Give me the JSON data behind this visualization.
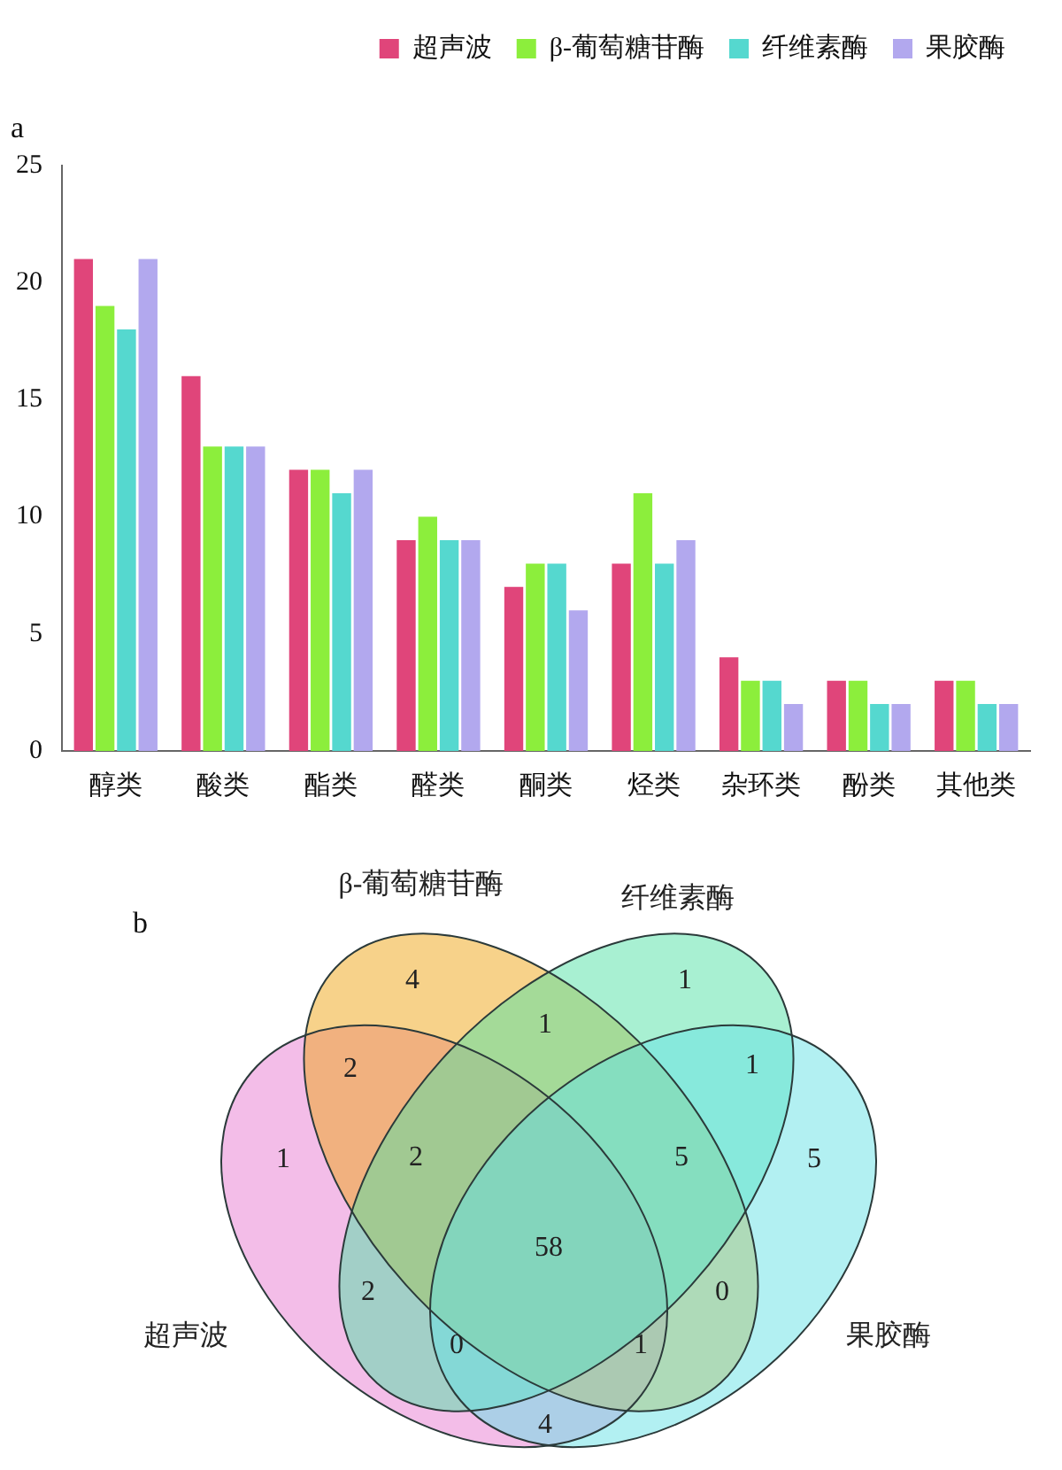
{
  "chart_data": [
    {
      "type": "bar",
      "title": "a",
      "categories": [
        "醇类",
        "酸类",
        "酯类",
        "醛类",
        "酮类",
        "烃类",
        "杂环类",
        "酚类",
        "其他类"
      ],
      "series": [
        {
          "name": "超声波",
          "color": "#e0457a",
          "values": [
            21,
            16,
            12,
            9,
            7,
            8,
            4,
            3,
            3
          ]
        },
        {
          "name": "β-葡萄糖苷酶",
          "color": "#8cee3c",
          "values": [
            19,
            13,
            12,
            10,
            8,
            11,
            3,
            3,
            3
          ]
        },
        {
          "name": "纤维素酶",
          "color": "#55d8cf",
          "values": [
            18,
            13,
            11,
            9,
            8,
            8,
            3,
            2,
            2
          ]
        },
        {
          "name": "果胶酶",
          "color": "#b2a8ee",
          "values": [
            21,
            13,
            12,
            9,
            6,
            9,
            2,
            2,
            2
          ]
        }
      ],
      "ylim": [
        0,
        25
      ],
      "yticks": [
        0,
        5,
        10,
        15,
        20,
        25
      ],
      "legend": "top right"
    },
    {
      "type": "other",
      "title": "b",
      "annotations": [
        "β-葡萄糖苷酶",
        "纤维素酶",
        "4",
        "1",
        "1",
        "1",
        "2",
        "1",
        "2",
        "5",
        "5",
        "58",
        "2",
        "0",
        "超声波",
        "0",
        "1",
        "果胶酶",
        "4"
      ]
    }
  ]
}
